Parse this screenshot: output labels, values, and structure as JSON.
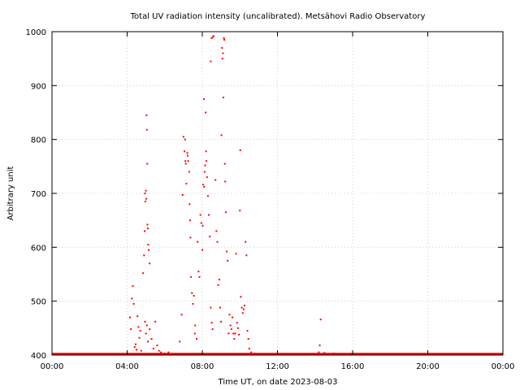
{
  "chart_data": {
    "type": "scatter",
    "title": "Total UV radiation intensity (uncalibrated). Metsähovi Radio Observatory",
    "xlabel": "Time UT, on date 2023-08-03",
    "ylabel": "Arbitrary unit",
    "xlim": [
      0,
      24
    ],
    "ylim": [
      400,
      1000
    ],
    "x_ticks": [
      {
        "value": 0,
        "label": "00:00"
      },
      {
        "value": 4,
        "label": "04:00"
      },
      {
        "value": 8,
        "label": "08:00"
      },
      {
        "value": 12,
        "label": "12:00"
      },
      {
        "value": 16,
        "label": "16:00"
      },
      {
        "value": 20,
        "label": "20:00"
      },
      {
        "value": 24,
        "label": "00:00"
      }
    ],
    "y_ticks": [
      {
        "value": 400,
        "label": "400"
      },
      {
        "value": 500,
        "label": "500"
      },
      {
        "value": 600,
        "label": "600"
      },
      {
        "value": 700,
        "label": "700"
      },
      {
        "value": 800,
        "label": "800"
      },
      {
        "value": 900,
        "label": "900"
      },
      {
        "value": 1000,
        "label": "1000"
      }
    ],
    "grid": true,
    "marker_color": "#ff0000",
    "baseline": {
      "y": 400,
      "x_start": 0,
      "x_end": 24
    },
    "points": [
      [
        4.15,
        470
      ],
      [
        4.2,
        448
      ],
      [
        4.25,
        505
      ],
      [
        4.3,
        528
      ],
      [
        4.35,
        495
      ],
      [
        4.4,
        415
      ],
      [
        4.45,
        420
      ],
      [
        4.5,
        410
      ],
      [
        4.55,
        472
      ],
      [
        4.6,
        452
      ],
      [
        4.65,
        432
      ],
      [
        4.7,
        445
      ],
      [
        4.75,
        408
      ],
      [
        4.8,
        402
      ],
      [
        4.85,
        552
      ],
      [
        4.9,
        585
      ],
      [
        4.93,
        630
      ],
      [
        4.95,
        700
      ],
      [
        4.97,
        685
      ],
      [
        5.0,
        705
      ],
      [
        5.02,
        690
      ],
      [
        5.03,
        845
      ],
      [
        5.05,
        818
      ],
      [
        5.07,
        755
      ],
      [
        5.08,
        642
      ],
      [
        5.1,
        635
      ],
      [
        5.12,
        605
      ],
      [
        5.15,
        595
      ],
      [
        5.2,
        570
      ],
      [
        4.95,
        462
      ],
      [
        5.0,
        440
      ],
      [
        5.05,
        455
      ],
      [
        5.1,
        425
      ],
      [
        5.2,
        448
      ],
      [
        5.3,
        430
      ],
      [
        5.4,
        412
      ],
      [
        5.5,
        462
      ],
      [
        5.6,
        418
      ],
      [
        5.7,
        408
      ],
      [
        5.8,
        405
      ],
      [
        6.0,
        403
      ],
      [
        6.2,
        405
      ],
      [
        6.5,
        402
      ],
      [
        6.8,
        425
      ],
      [
        6.9,
        475
      ],
      [
        6.95,
        697
      ],
      [
        7.0,
        805
      ],
      [
        7.05,
        778
      ],
      [
        7.08,
        800
      ],
      [
        7.1,
        760
      ],
      [
        7.12,
        755
      ],
      [
        7.15,
        718
      ],
      [
        7.2,
        775
      ],
      [
        7.22,
        770
      ],
      [
        7.25,
        760
      ],
      [
        7.3,
        740
      ],
      [
        7.32,
        680
      ],
      [
        7.35,
        650
      ],
      [
        7.37,
        618
      ],
      [
        7.4,
        545
      ],
      [
        7.45,
        515
      ],
      [
        7.5,
        495
      ],
      [
        7.55,
        510
      ],
      [
        7.6,
        440
      ],
      [
        7.62,
        455
      ],
      [
        7.7,
        430
      ],
      [
        7.75,
        610
      ],
      [
        7.8,
        555
      ],
      [
        7.85,
        545
      ],
      [
        7.9,
        660
      ],
      [
        7.95,
        645
      ],
      [
        8.0,
        595
      ],
      [
        8.02,
        640
      ],
      [
        8.05,
        716
      ],
      [
        8.08,
        875
      ],
      [
        8.1,
        712
      ],
      [
        8.12,
        740
      ],
      [
        8.15,
        752
      ],
      [
        8.18,
        850
      ],
      [
        8.2,
        778
      ],
      [
        8.22,
        760
      ],
      [
        8.25,
        730
      ],
      [
        8.3,
        695
      ],
      [
        8.35,
        660
      ],
      [
        8.4,
        620
      ],
      [
        8.45,
        488
      ],
      [
        8.5,
        460
      ],
      [
        8.55,
        448
      ],
      [
        8.5,
        988
      ],
      [
        8.55,
        990
      ],
      [
        8.6,
        992
      ],
      [
        8.45,
        945
      ],
      [
        8.7,
        725
      ],
      [
        8.75,
        630
      ],
      [
        8.8,
        610
      ],
      [
        8.85,
        530
      ],
      [
        8.9,
        540
      ],
      [
        8.95,
        488
      ],
      [
        9.0,
        462
      ],
      [
        9.02,
        808
      ],
      [
        9.05,
        970
      ],
      [
        9.07,
        950
      ],
      [
        9.1,
        960
      ],
      [
        9.12,
        878
      ],
      [
        9.15,
        988
      ],
      [
        9.17,
        985
      ],
      [
        9.2,
        755
      ],
      [
        9.22,
        722
      ],
      [
        9.25,
        665
      ],
      [
        9.3,
        592
      ],
      [
        9.35,
        575
      ],
      [
        9.4,
        440
      ],
      [
        9.45,
        475
      ],
      [
        9.5,
        455
      ],
      [
        9.55,
        448
      ],
      [
        9.6,
        470
      ],
      [
        9.65,
        440
      ],
      [
        9.7,
        430
      ],
      [
        9.75,
        440
      ],
      [
        9.8,
        588
      ],
      [
        9.85,
        460
      ],
      [
        9.9,
        450
      ],
      [
        9.95,
        438
      ],
      [
        10.0,
        668
      ],
      [
        10.02,
        780
      ],
      [
        10.05,
        508
      ],
      [
        10.1,
        488
      ],
      [
        10.15,
        478
      ],
      [
        10.2,
        485
      ],
      [
        10.25,
        492
      ],
      [
        10.3,
        610
      ],
      [
        10.35,
        585
      ],
      [
        10.4,
        445
      ],
      [
        10.45,
        430
      ],
      [
        10.5,
        412
      ],
      [
        10.6,
        405
      ],
      [
        10.8,
        403
      ],
      [
        5.5,
        402
      ],
      [
        6.0,
        402
      ],
      [
        7.5,
        402
      ],
      [
        8.0,
        402
      ],
      [
        9.0,
        402
      ],
      [
        9.5,
        402
      ],
      [
        10.0,
        402
      ],
      [
        13.5,
        402
      ],
      [
        14.2,
        405
      ],
      [
        14.25,
        418
      ],
      [
        14.3,
        466
      ],
      [
        14.5,
        404
      ],
      [
        15.0,
        403
      ]
    ]
  }
}
